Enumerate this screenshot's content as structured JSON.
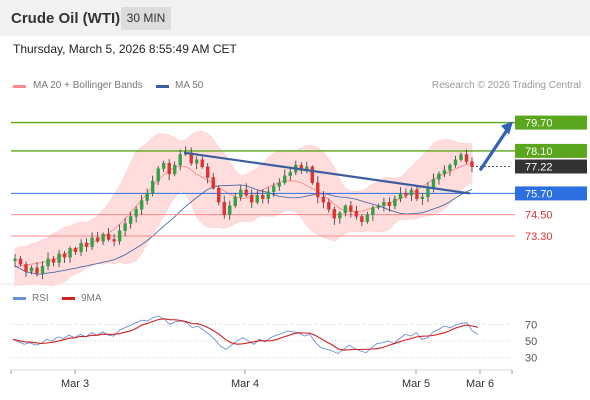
{
  "header": {
    "title": "Crude Oil (WTI)",
    "timeframe": "30 MIN"
  },
  "timestamp": "Thursday, March 5, 2026 8:55:49 AM CET",
  "legend": {
    "ma20": "MA 20 + Bollinger Bands",
    "ma50": "MA 50",
    "credit": "Research © 2026 Trading Central"
  },
  "rsi_legend": {
    "rsi": "RSI",
    "ma9": "9MA"
  },
  "colors": {
    "resistance": "#5aa61d",
    "support": "#ff8a8a",
    "pivot": "#2b6fe0",
    "price_label": "#333333",
    "trendline": "#3b5f9e",
    "ma20": "#ff8a8a",
    "ma50": "#4a6fa5",
    "bollinger_fill": "#ffdada",
    "candle_up": "#35a146",
    "candle_down": "#e03232",
    "rsi": "#6d8fd8",
    "rsi_ma": "#d02020"
  },
  "chart_data": [
    {
      "type": "candlestick",
      "title": "Crude Oil (WTI)",
      "timeframe": "30 MIN",
      "x_tick_labels": [
        "Mar 3",
        "Mar 4",
        "Mar 5",
        "Mar 6"
      ],
      "price_levels": [
        {
          "label": "79.70",
          "value": 79.7,
          "kind": "resistance"
        },
        {
          "label": "78.10",
          "value": 78.1,
          "kind": "resistance"
        },
        {
          "label": "77.22",
          "value": 77.22,
          "kind": "last"
        },
        {
          "label": "75.70",
          "value": 75.7,
          "kind": "pivot"
        },
        {
          "label": "74.50",
          "value": 74.5,
          "kind": "support"
        },
        {
          "label": "73.30",
          "value": 73.3,
          "kind": "support"
        }
      ],
      "price_range": [
        70.7,
        81.2
      ],
      "series": [
        {
          "name": "MA 20 + Bollinger Bands"
        },
        {
          "name": "MA 50"
        }
      ],
      "close_path": [
        72.0,
        71.7,
        71.3,
        71.5,
        71.2,
        71.6,
        72.0,
        71.8,
        72.3,
        72.1,
        72.6,
        72.4,
        72.9,
        72.7,
        73.2,
        73.0,
        73.4,
        73.1,
        73.0,
        73.6,
        74.0,
        74.4,
        74.8,
        75.3,
        75.7,
        76.4,
        77.1,
        77.4,
        76.8,
        77.3,
        77.9,
        78.0,
        77.4,
        77.6,
        77.2,
        76.6,
        76.0,
        75.2,
        74.5,
        75.0,
        75.5,
        75.9,
        75.6,
        75.2,
        75.6,
        75.4,
        75.8,
        76.1,
        76.3,
        76.7,
        76.9,
        77.3,
        77.0,
        77.2,
        76.3,
        75.5,
        75.2,
        74.8,
        74.3,
        74.6,
        75.0,
        74.7,
        74.4,
        74.1,
        74.5,
        74.9,
        75.0,
        75.2,
        75.0,
        75.4,
        75.7,
        75.6,
        75.9,
        75.4,
        75.5,
        76.0,
        76.5,
        76.8,
        77.0,
        77.3,
        77.6,
        77.9,
        77.5,
        77.2
      ],
      "trendlines": [
        {
          "from": [
            "Mar 3",
            78.0
          ],
          "to": [
            "Mar 6",
            75.7
          ]
        }
      ],
      "arrow_target": 79.7
    },
    {
      "type": "line",
      "title": "RSI",
      "y_tick_labels": [
        "70",
        "50",
        "30"
      ],
      "ylim": [
        20,
        80
      ],
      "series": [
        {
          "name": "RSI"
        },
        {
          "name": "9MA"
        }
      ],
      "rsi_path": [
        52,
        49,
        46,
        48,
        45,
        47,
        52,
        50,
        55,
        53,
        57,
        54,
        58,
        55,
        60,
        57,
        61,
        57,
        56,
        63,
        66,
        69,
        72,
        75,
        74,
        78,
        80,
        76,
        70,
        73,
        74,
        72,
        66,
        68,
        63,
        58,
        52,
        44,
        40,
        45,
        50,
        54,
        50,
        46,
        52,
        49,
        54,
        57,
        59,
        62,
        61,
        60,
        56,
        58,
        48,
        42,
        40,
        38,
        35,
        40,
        45,
        41,
        38,
        36,
        42,
        47,
        48,
        50,
        47,
        53,
        58,
        56,
        60,
        52,
        54,
        61,
        64,
        68,
        66,
        69,
        71,
        72,
        62,
        58
      ]
    }
  ]
}
